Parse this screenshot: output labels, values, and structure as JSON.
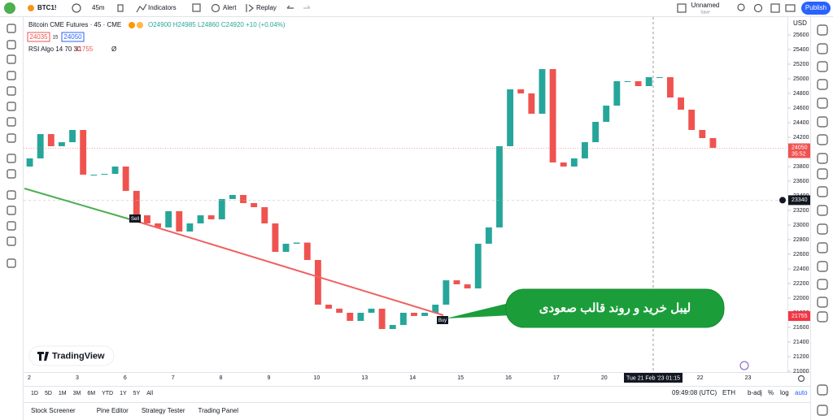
{
  "header": {
    "symbol": "BTC1!",
    "interval": "45m",
    "indicators": "Indicators",
    "alert": "Alert",
    "replay": "Replay",
    "layout_name": "Unnamed",
    "save": "Save",
    "publish": "Publish"
  },
  "legend": {
    "title": "Bitcoin CME Futures · 45 · CME",
    "ohlc": "O24900 H24985 L24860 C24920 +10 (+0.04%)",
    "bid": "24035",
    "spread": "15",
    "ask": "24050",
    "indicator": "RSI Algo 14 70 30",
    "indicator_value": "21755",
    "indicator_extra": "Ø"
  },
  "chart_data": {
    "type": "candlestick",
    "currency": "USD",
    "categories": [
      "2",
      "3",
      "6",
      "7",
      "8",
      "9",
      "10",
      "13",
      "14",
      "15",
      "16",
      "17",
      "20",
      null,
      "22",
      "23"
    ],
    "crosshair_label": "Tue 21 Feb '23 01:15",
    "open": [
      23800,
      23911,
      24244,
      24078,
      24133,
      24300,
      23689,
      23689,
      23700,
      23800,
      23467,
      23133,
      23022,
      22967,
      23189,
      22911,
      23022,
      23133,
      23078,
      23356,
      23411,
      23300,
      23244,
      23022,
      22633,
      22744,
      22760,
      22522,
      21911,
      21856,
      21800,
      21689,
      21800,
      21856,
      21578,
      21633,
      21800,
      21756,
      21800,
      21911,
      22244,
      22189,
      22133,
      22744,
      22967,
      24078,
      24856,
      24800,
      24522,
      25133,
      23856,
      23800,
      23911,
      24133,
      24411,
      24633,
      24967,
      24967,
      24900,
      25022,
      25022,
      24744,
      24578,
      24300,
      24189
    ],
    "close": [
      23911,
      24244,
      24078,
      24133,
      24300,
      23689,
      23689,
      23700,
      23800,
      23467,
      23133,
      23022,
      22967,
      23189,
      22911,
      23022,
      23133,
      23078,
      23356,
      23411,
      23300,
      23244,
      23022,
      22633,
      22744,
      22760,
      22522,
      21911,
      21856,
      21800,
      21689,
      21800,
      21856,
      21578,
      21633,
      21800,
      21756,
      21800,
      21911,
      22244,
      22189,
      22133,
      22744,
      22967,
      24078,
      24856,
      24800,
      24522,
      25133,
      23856,
      23800,
      23911,
      24133,
      24411,
      24633,
      24967,
      24967,
      24900,
      25022,
      25022,
      24744,
      24578,
      24300,
      24189,
      24056
    ],
    "up_color": "#26a69a",
    "down_color": "#ef5350",
    "ylim": [
      21000,
      25600
    ],
    "yticks": [
      21000,
      21200,
      21400,
      21600,
      21800,
      22000,
      22200,
      22400,
      22600,
      22800,
      23000,
      23200,
      23400,
      23600,
      23800,
      24000,
      24200,
      24400,
      24600,
      24800,
      25000,
      25200,
      25400,
      25600
    ],
    "last_price": 24050,
    "countdown": "35:52",
    "crosshair_price": 23340,
    "indicator_price": 21755,
    "annotations": {
      "sell": "Sell",
      "buy": "Buy",
      "callout": "لیبل خرید و روند قالب صعودی"
    }
  },
  "watermark": "TradingView",
  "bottom_bar": {
    "ranges": [
      "1D",
      "5D",
      "1M",
      "3M",
      "6M",
      "YTD",
      "1Y",
      "5Y",
      "All"
    ],
    "time": "09:49:08 (UTC)",
    "session": "ETH",
    "adj": "b-adj",
    "percent": "%",
    "log": "log",
    "auto": "auto"
  },
  "tabs": [
    "Stock Screener",
    "Pine Editor",
    "Strategy Tester",
    "Trading Panel"
  ]
}
